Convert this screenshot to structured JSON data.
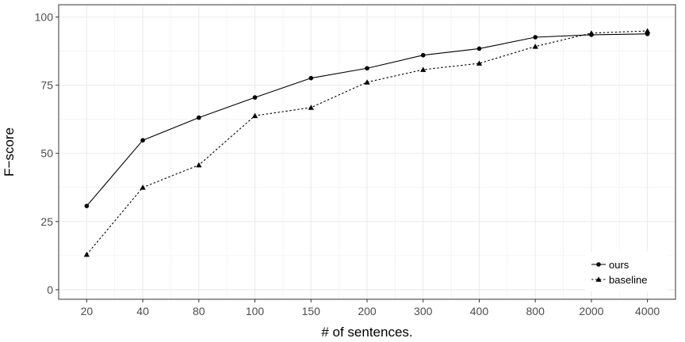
{
  "chart_data": {
    "type": "line",
    "title": "",
    "xlabel": "# of sentences.",
    "ylabel": "F−score",
    "categories": [
      "20",
      "40",
      "80",
      "100",
      "150",
      "200",
      "300",
      "400",
      "800",
      "2000",
      "4000"
    ],
    "ylim": [
      -3.5,
      104.5
    ],
    "yticks": [
      0,
      25,
      50,
      75,
      100
    ],
    "grid": true,
    "legend_position": "bottom-right",
    "series": [
      {
        "name": "ours",
        "values": [
          30.7,
          54.8,
          63.1,
          70.5,
          77.6,
          81.2,
          86.0,
          88.4,
          92.6,
          93.5,
          93.8
        ],
        "marker": "circle",
        "line_style": "solid",
        "color": "#000000"
      },
      {
        "name": "baseline",
        "values": [
          12.9,
          37.5,
          45.7,
          63.8,
          66.8,
          76.1,
          80.7,
          83.0,
          89.2,
          94.1,
          94.9
        ],
        "marker": "triangle",
        "line_style": "dotted",
        "color": "#000000"
      }
    ]
  }
}
